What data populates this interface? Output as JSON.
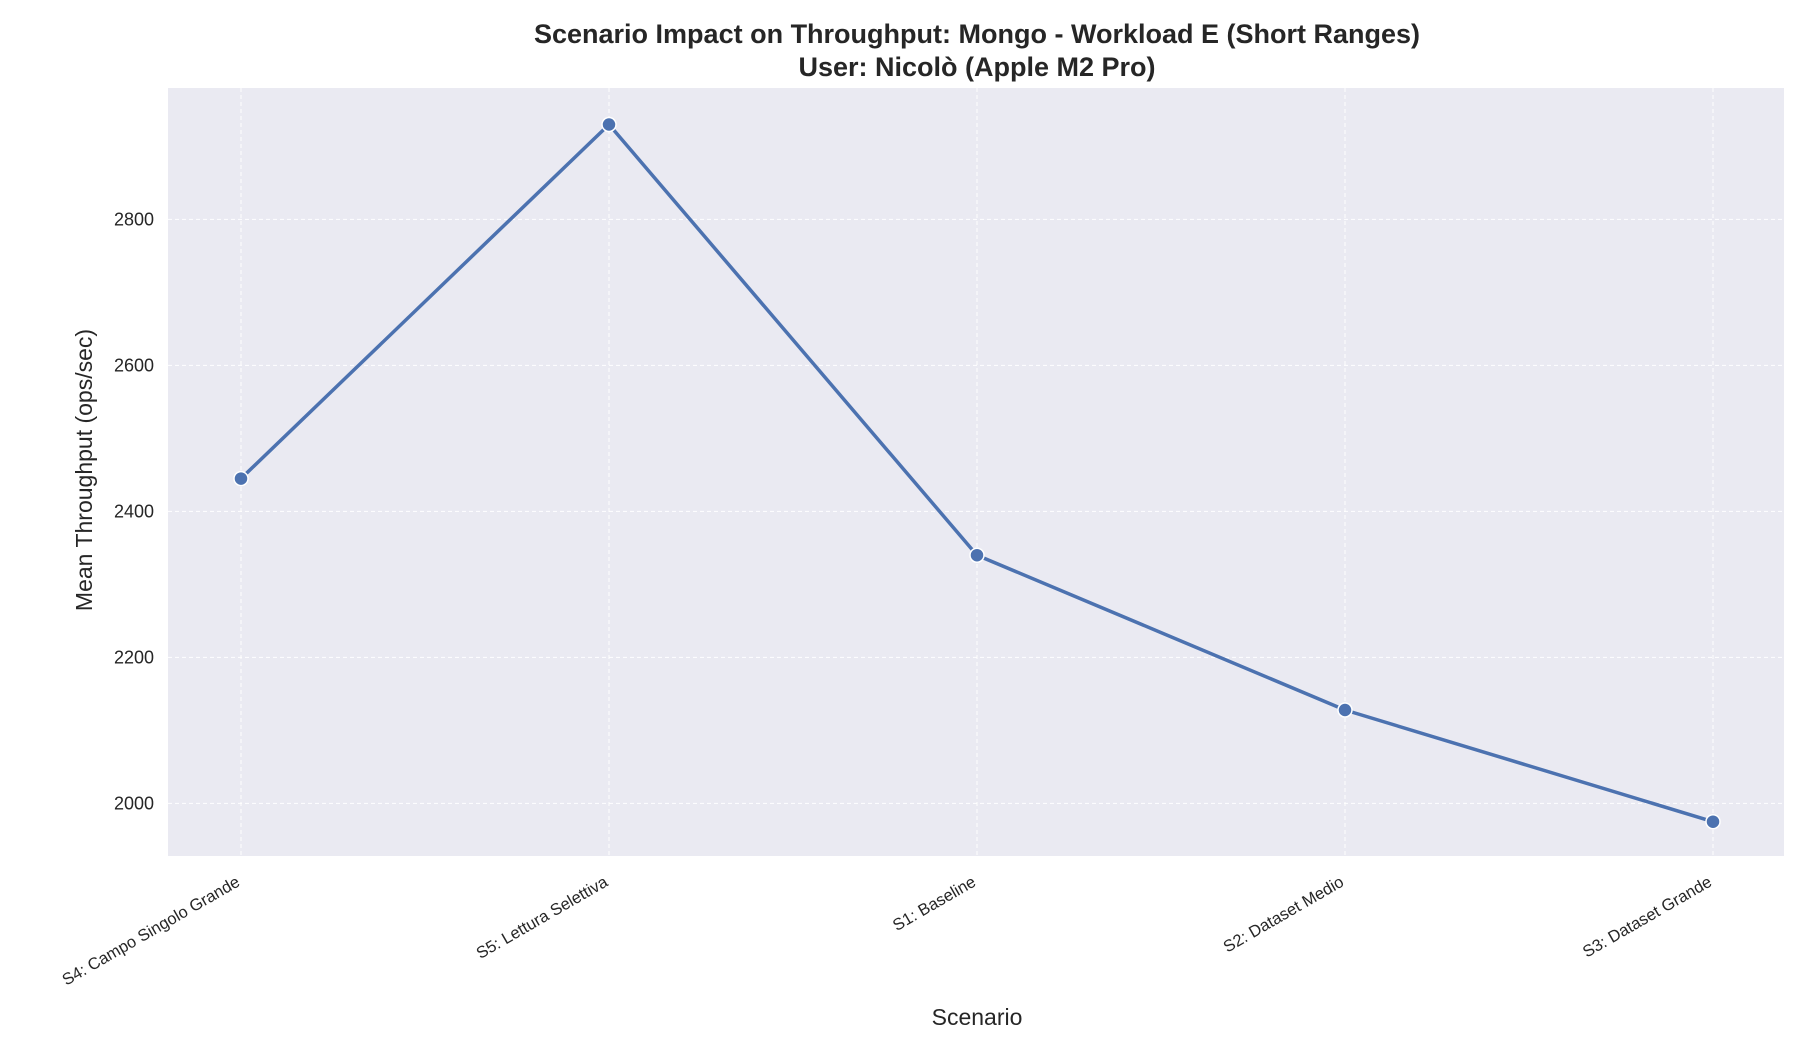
{
  "chart_data": {
    "type": "line",
    "title_line1": "Scenario Impact on Throughput: Mongo - Workload E (Short Ranges)",
    "title_line2": "User: Nicolò (Apple M2 Pro)",
    "xlabel": "Scenario",
    "ylabel": "Mean Throughput (ops/sec)",
    "categories": [
      "S4: Campo Singolo Grande",
      "S5: Lettura Selettiva",
      "S1: Baseline",
      "S2: Dataset Medio",
      "S3: Dataset Grande"
    ],
    "series": [
      {
        "values": [
          2445,
          2930,
          2340,
          2128,
          1975
        ]
      }
    ],
    "ylim": [
      1928,
      2980
    ],
    "yticks": [
      2000,
      2200,
      2400,
      2600,
      2800
    ],
    "grid": true,
    "legend": "none",
    "colors": {
      "plot_background": "#eaeaf2",
      "line": "#4c72b0",
      "grid": "#ffffff"
    }
  }
}
